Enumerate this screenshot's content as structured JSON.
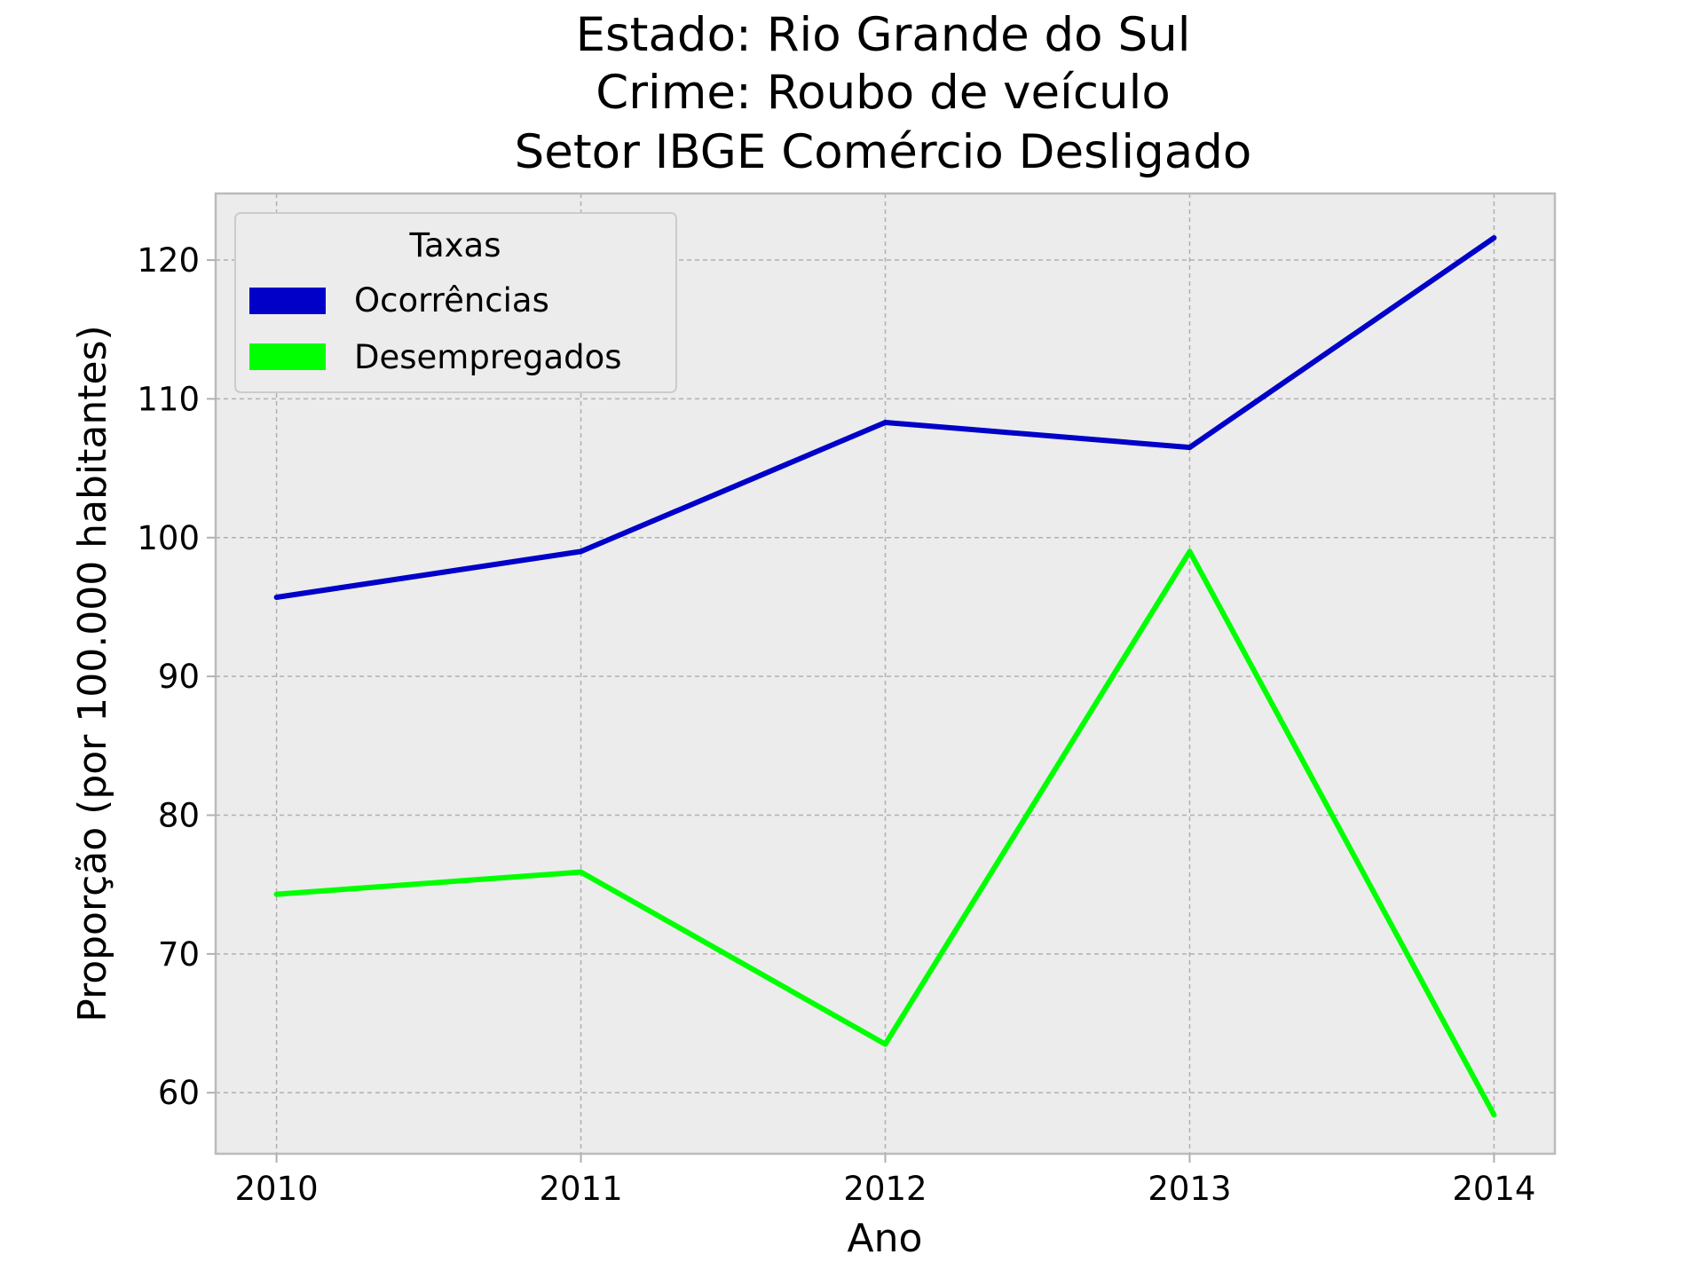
{
  "chart_data": {
    "type": "line",
    "title_lines": [
      "Estado: Rio Grande do Sul",
      "Crime: Roubo de veículo",
      "Setor IBGE  Comércio   Desligado"
    ],
    "xlabel": "Ano",
    "ylabel": "Proporção (por 100.000 habitantes)",
    "x": [
      2010,
      2011,
      2012,
      2013,
      2014
    ],
    "x_tick_labels": [
      "2010",
      "2011",
      "2012",
      "2013",
      "2014"
    ],
    "y_ticks": [
      60,
      70,
      80,
      90,
      100,
      110,
      120
    ],
    "y_tick_labels": [
      "60",
      "70",
      "80",
      "90",
      "100",
      "110",
      "120"
    ],
    "xlim": [
      2009.8,
      2014.2
    ],
    "ylim": [
      55.6,
      124.8
    ],
    "grid": true,
    "legend": {
      "title": "Taxas",
      "placement": "upper-left"
    },
    "series": [
      {
        "name": "Ocorrências",
        "color": "#0000c8",
        "values": [
          95.7,
          99.0,
          108.3,
          106.5,
          121.6
        ]
      },
      {
        "name": "Desempregados",
        "color": "#00ff00",
        "values": [
          74.3,
          75.9,
          63.5,
          99.0,
          58.4
        ]
      }
    ]
  },
  "colors": {
    "plot_background": "#ececec",
    "axes_edge": "#bbbbbb",
    "grid": "#b0b0b0"
  }
}
